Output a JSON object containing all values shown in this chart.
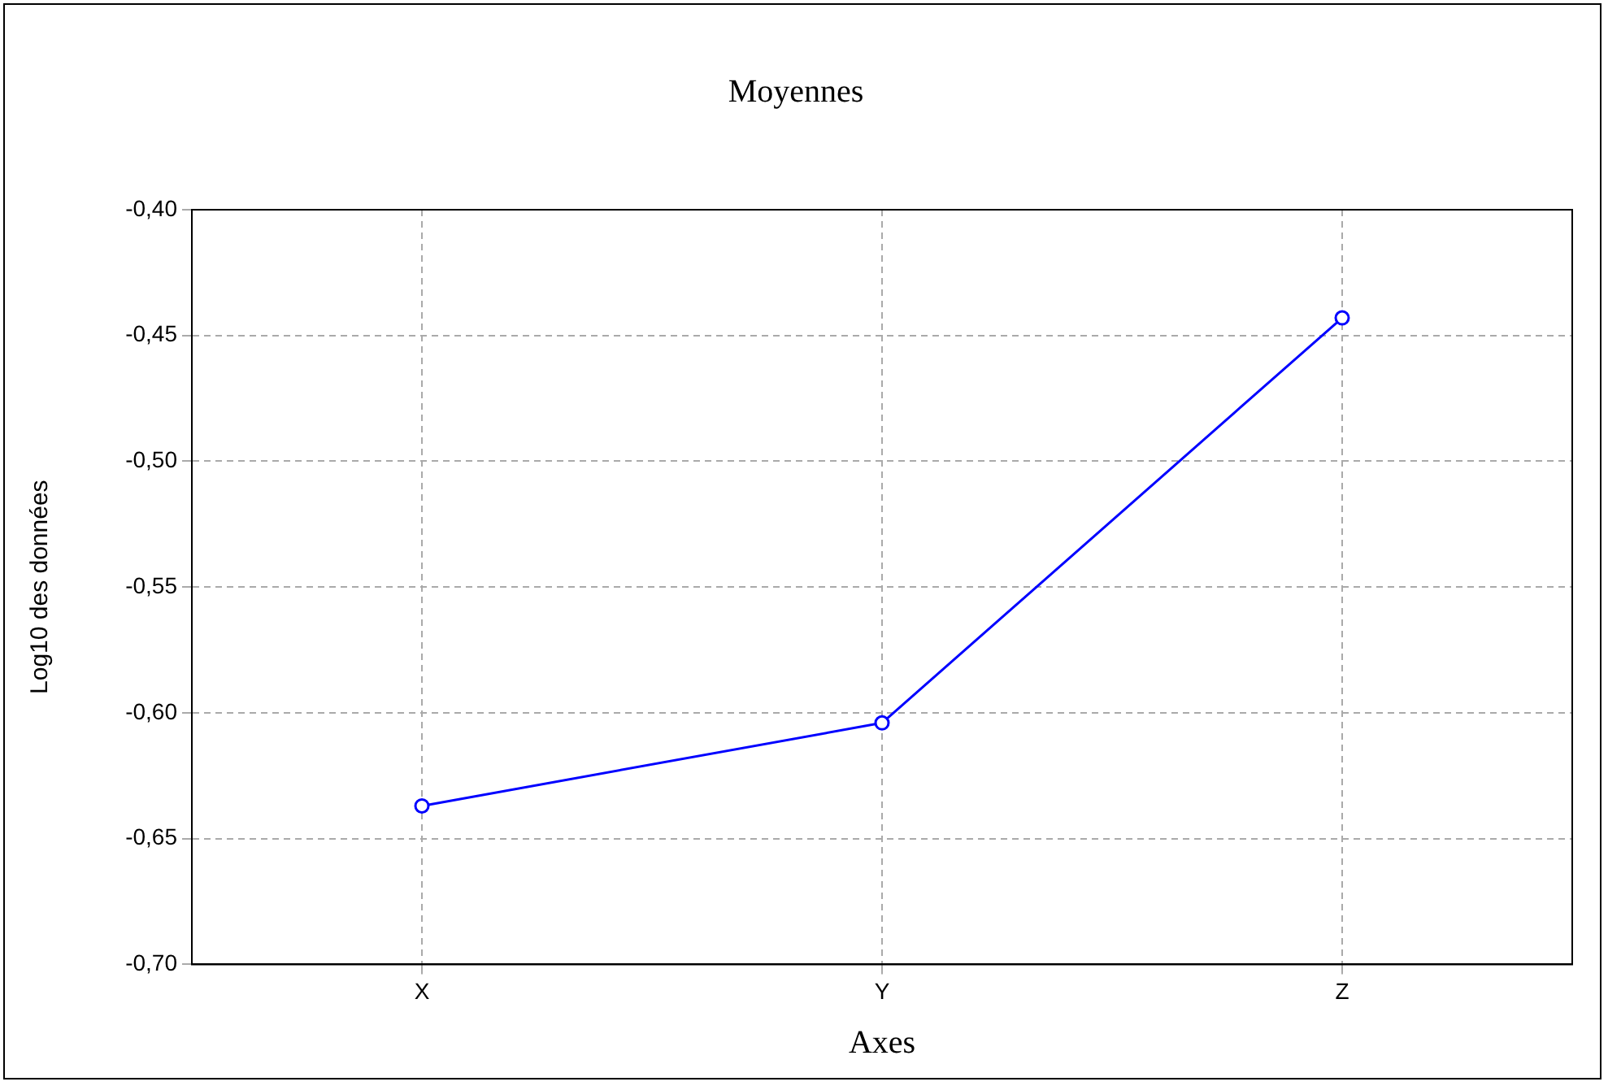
{
  "chart_data": {
    "type": "line",
    "title": "Moyennes",
    "xlabel": "Axes",
    "ylabel": "Log10 des données",
    "categories": [
      "X",
      "Y",
      "Z"
    ],
    "series": [
      {
        "color": "#0000ff",
        "values": [
          -0.637,
          -0.604,
          -0.443
        ]
      }
    ],
    "ylim": [
      -0.7,
      -0.4
    ],
    "yticks": [
      {
        "value": -0.7,
        "label": "-0,70"
      },
      {
        "value": -0.65,
        "label": "-0,65"
      },
      {
        "value": -0.6,
        "label": "-0,60"
      },
      {
        "value": -0.55,
        "label": "-0,55"
      },
      {
        "value": -0.5,
        "label": "-0,50"
      },
      {
        "value": -0.45,
        "label": "-0,45"
      },
      {
        "value": -0.4,
        "label": "-0,40"
      }
    ],
    "grid": true,
    "legend": false,
    "marker": "circle",
    "line_style": "solid"
  }
}
